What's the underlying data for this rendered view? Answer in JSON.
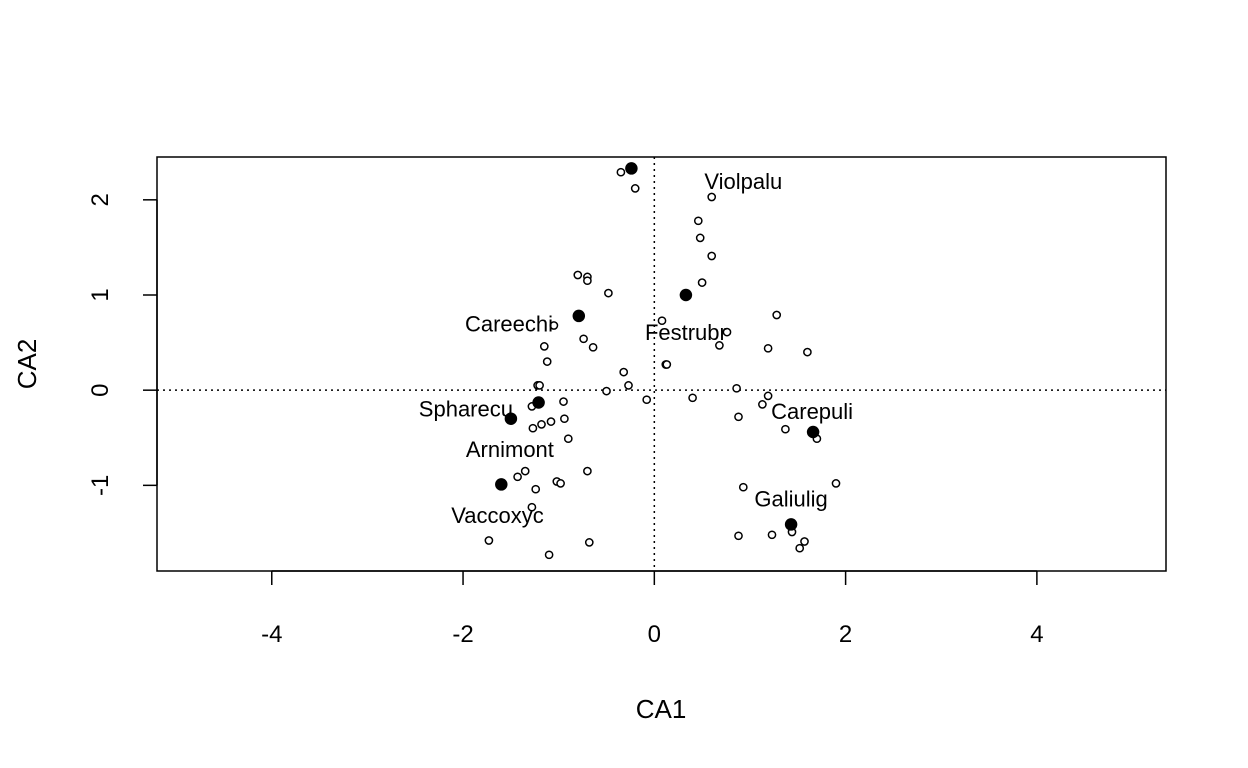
{
  "chart_data": {
    "type": "scatter",
    "title": "",
    "xlabel": "CA1",
    "ylabel": "CA2",
    "xlim": [
      -5.2,
      5.35
    ],
    "ylim": [
      -1.9,
      2.45
    ],
    "x_ticks": [
      -4,
      -2,
      0,
      2,
      4
    ],
    "y_ticks": [
      -1,
      0,
      1,
      2
    ],
    "x_tick_labels": [
      "-4",
      "-2",
      "0",
      "2",
      "4"
    ],
    "y_tick_labels": [
      "-1",
      "0",
      "1",
      "2"
    ],
    "reference_lines": {
      "x": 0,
      "y": 0,
      "style": "dotted"
    },
    "grid": false,
    "legend": "none",
    "colors": {
      "points": "#000000",
      "background": "#ffffff"
    },
    "series": [
      {
        "marker": "open-circle",
        "points": [
          [
            -0.35,
            2.29
          ],
          [
            -0.2,
            2.12
          ],
          [
            0.6,
            2.03
          ],
          [
            0.46,
            1.78
          ],
          [
            0.48,
            1.6
          ],
          [
            0.6,
            1.41
          ],
          [
            -0.8,
            1.21
          ],
          [
            -0.7,
            1.19
          ],
          [
            -0.7,
            1.15
          ],
          [
            0.5,
            1.13
          ],
          [
            -0.48,
            1.02
          ],
          [
            -1.05,
            0.68
          ],
          [
            0.08,
            0.73
          ],
          [
            0.76,
            0.61
          ],
          [
            1.28,
            0.79
          ],
          [
            -0.74,
            0.54
          ],
          [
            0.68,
            0.47
          ],
          [
            -1.15,
            0.46
          ],
          [
            -0.64,
            0.45
          ],
          [
            1.19,
            0.44
          ],
          [
            1.6,
            0.4
          ],
          [
            -1.12,
            0.3
          ],
          [
            0.12,
            0.27
          ],
          [
            0.13,
            0.27
          ],
          [
            -0.32,
            0.19
          ],
          [
            -1.22,
            0.05
          ],
          [
            -1.2,
            0.05
          ],
          [
            -0.27,
            0.05
          ],
          [
            -0.5,
            -0.01
          ],
          [
            0.86,
            0.02
          ],
          [
            0.4,
            -0.08
          ],
          [
            -0.95,
            -0.12
          ],
          [
            -0.08,
            -0.1
          ],
          [
            1.19,
            -0.06
          ],
          [
            1.13,
            -0.15
          ],
          [
            -1.28,
            -0.17
          ],
          [
            -0.94,
            -0.3
          ],
          [
            0.88,
            -0.28
          ],
          [
            -1.08,
            -0.33
          ],
          [
            -1.18,
            -0.36
          ],
          [
            -1.27,
            -0.4
          ],
          [
            1.37,
            -0.41
          ],
          [
            -0.9,
            -0.51
          ],
          [
            1.7,
            -0.51
          ],
          [
            -0.7,
            -0.85
          ],
          [
            -1.35,
            -0.85
          ],
          [
            -1.43,
            -0.91
          ],
          [
            -1.02,
            -0.96
          ],
          [
            -0.98,
            -0.98
          ],
          [
            -1.24,
            -1.04
          ],
          [
            0.93,
            -1.02
          ],
          [
            1.9,
            -0.98
          ],
          [
            -1.28,
            -1.23
          ],
          [
            1.44,
            -1.49
          ],
          [
            0.88,
            -1.53
          ],
          [
            1.23,
            -1.52
          ],
          [
            1.57,
            -1.59
          ],
          [
            1.52,
            -1.66
          ],
          [
            -1.73,
            -1.58
          ],
          [
            -0.68,
            -1.6
          ],
          [
            -1.1,
            -1.73
          ]
        ]
      },
      {
        "marker": "filled-circle",
        "points": [
          [
            -0.24,
            2.33
          ],
          [
            0.33,
            1.0
          ],
          [
            -0.79,
            0.78
          ],
          [
            -1.21,
            -0.13
          ],
          [
            -1.5,
            -0.3
          ],
          [
            1.66,
            -0.44
          ],
          [
            -1.6,
            -0.99
          ],
          [
            1.43,
            -1.41
          ]
        ]
      }
    ],
    "annotations": [
      {
        "text": "Violpalu",
        "x": 0.93,
        "y": 2.2
      },
      {
        "text": "Careechi",
        "x": -1.52,
        "y": 0.7
      },
      {
        "text": "Festrubr",
        "x": 0.33,
        "y": 0.61
      },
      {
        "text": "Spharecu",
        "x": -1.97,
        "y": -0.19
      },
      {
        "text": "Carepuli",
        "x": 1.65,
        "y": -0.22
      },
      {
        "text": "Arnimont",
        "x": -1.51,
        "y": -0.62
      },
      {
        "text": "Galiulig",
        "x": 1.43,
        "y": -1.14
      },
      {
        "text": "Vaccoxyc",
        "x": -1.64,
        "y": -1.31
      }
    ]
  }
}
